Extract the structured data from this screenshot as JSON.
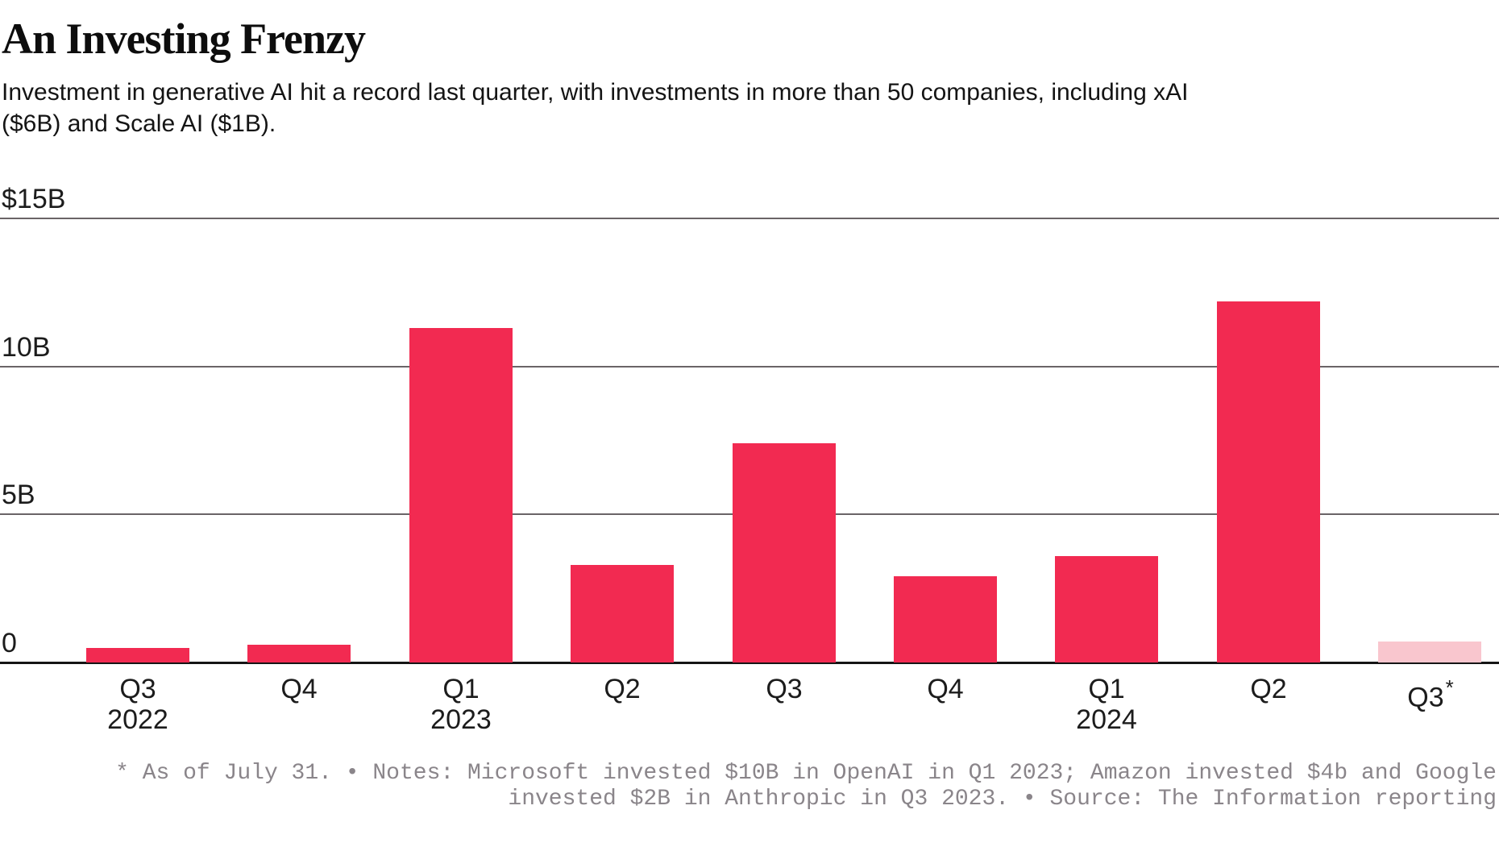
{
  "header": {
    "title": "An Investing Frenzy",
    "subtitle_lines": [
      "Investment in generative AI hit a record last quarter, with investments in more than 50 companies, including xAI",
      "($6B) and Scale AI ($1B)."
    ]
  },
  "chart_data": {
    "type": "bar",
    "title": "An Investing Frenzy",
    "subtitle": "Investment in generative AI hit a record last quarter, with investments in more than 50 companies, including xAI ($6B) and Scale AI ($1B).",
    "unit": "billions of U.S. dollars",
    "categories": [
      {
        "quarter": "Q3",
        "year_label": "2022",
        "provisional": false
      },
      {
        "quarter": "Q4",
        "year_label": "",
        "provisional": false
      },
      {
        "quarter": "Q1",
        "year_label": "2023",
        "provisional": false
      },
      {
        "quarter": "Q2",
        "year_label": "",
        "provisional": false
      },
      {
        "quarter": "Q3",
        "year_label": "",
        "provisional": false
      },
      {
        "quarter": "Q4",
        "year_label": "",
        "provisional": false
      },
      {
        "quarter": "Q1",
        "year_label": "2024",
        "provisional": false
      },
      {
        "quarter": "Q2",
        "year_label": "",
        "provisional": false
      },
      {
        "quarter": "Q3",
        "year_label": "",
        "provisional": true,
        "asterisk": "*"
      }
    ],
    "values": [
      0.5,
      0.6,
      11.3,
      3.3,
      7.4,
      2.9,
      3.6,
      12.2,
      0.7
    ],
    "ylim": [
      0,
      15
    ],
    "yticks": [
      {
        "label": "$15B",
        "value": 15
      },
      {
        "label": "10B",
        "value": 10
      },
      {
        "label": "5B",
        "value": 5
      },
      {
        "label": "0",
        "value": 0
      }
    ],
    "grid": true,
    "legend": "none",
    "colors": {
      "bar": "#f22a51",
      "provisional_bar": "#f9c6ce",
      "gridline": "#6a6467",
      "axis": "#151515",
      "text": "#1c1c1c",
      "footnote_text": "#8a858a"
    }
  },
  "footnote": {
    "lines": [
      "* As of July 31. • Notes: Microsoft invested $10B in OpenAI in Q1 2023; Amazon invested $4b and Google",
      "invested $2B in Anthropic in Q3 2023. • Source: The Information reporting"
    ]
  }
}
